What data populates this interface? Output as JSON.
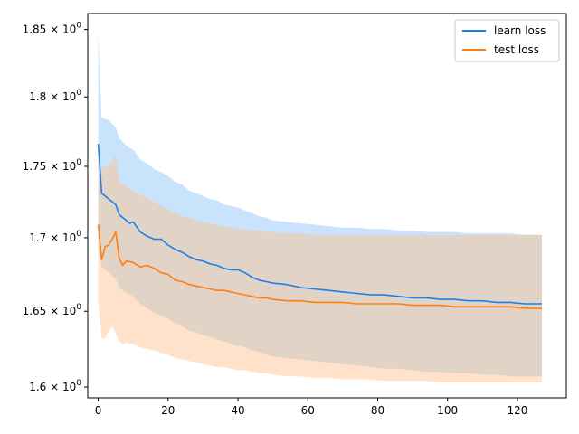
{
  "chart_data": {
    "type": "line",
    "title": "",
    "xlabel": "",
    "ylabel": "",
    "xlim": [
      -3,
      134
    ],
    "ylim": [
      1.593,
      1.862
    ],
    "yscale": "log",
    "grid": false,
    "legend_position": "top-right",
    "x_ticks": [
      {
        "value": 0,
        "label": "0"
      },
      {
        "value": 20,
        "label": "20"
      },
      {
        "value": 40,
        "label": "40"
      },
      {
        "value": 60,
        "label": "60"
      },
      {
        "value": 80,
        "label": "80"
      },
      {
        "value": 100,
        "label": "100"
      },
      {
        "value": 120,
        "label": "120"
      }
    ],
    "y_ticks": [
      {
        "value": 1.6,
        "base": "1.6",
        "exp": "0"
      },
      {
        "value": 1.65,
        "base": "1.65",
        "exp": "0"
      },
      {
        "value": 1.7,
        "base": "1.7",
        "exp": "0"
      },
      {
        "value": 1.75,
        "base": "1.75",
        "exp": "0"
      },
      {
        "value": 1.8,
        "base": "1.8",
        "exp": "0"
      },
      {
        "value": 1.85,
        "base": "1.85",
        "exp": "0"
      }
    ],
    "tick_times_symbol": "×",
    "tick_base_number": "10",
    "series": [
      {
        "name": "learn loss",
        "color": "#1a80e5",
        "band_color": "#9fccfa",
        "band_opacity": 0.55,
        "x": [
          0,
          1,
          3,
          5,
          6,
          8,
          9,
          10,
          12,
          14,
          16,
          18,
          20,
          22,
          24,
          26,
          28,
          30,
          32,
          34,
          36,
          38,
          40,
          42,
          44,
          46,
          48,
          50,
          54,
          58,
          62,
          66,
          70,
          74,
          78,
          82,
          86,
          90,
          94,
          98,
          102,
          106,
          110,
          114,
          118,
          122,
          125,
          127
        ],
        "mean": [
          1.766,
          1.731,
          1.727,
          1.723,
          1.716,
          1.712,
          1.71,
          1.711,
          1.704,
          1.701,
          1.699,
          1.699,
          1.695,
          1.692,
          1.69,
          1.687,
          1.685,
          1.684,
          1.682,
          1.681,
          1.679,
          1.678,
          1.678,
          1.676,
          1.673,
          1.671,
          1.67,
          1.669,
          1.668,
          1.666,
          1.665,
          1.664,
          1.663,
          1.662,
          1.661,
          1.661,
          1.66,
          1.659,
          1.659,
          1.658,
          1.658,
          1.657,
          1.657,
          1.656,
          1.656,
          1.655,
          1.655,
          1.655
        ],
        "upper": [
          1.847,
          1.785,
          1.783,
          1.778,
          1.77,
          1.765,
          1.763,
          1.762,
          1.755,
          1.752,
          1.748,
          1.746,
          1.743,
          1.739,
          1.737,
          1.733,
          1.731,
          1.729,
          1.727,
          1.726,
          1.723,
          1.722,
          1.721,
          1.719,
          1.717,
          1.715,
          1.714,
          1.712,
          1.711,
          1.71,
          1.709,
          1.708,
          1.707,
          1.707,
          1.706,
          1.706,
          1.705,
          1.705,
          1.704,
          1.704,
          1.704,
          1.703,
          1.703,
          1.703,
          1.703,
          1.702,
          1.702,
          1.702
        ],
        "lower": [
          1.691,
          1.68,
          1.676,
          1.672,
          1.666,
          1.662,
          1.661,
          1.66,
          1.655,
          1.652,
          1.649,
          1.647,
          1.645,
          1.642,
          1.64,
          1.637,
          1.636,
          1.634,
          1.633,
          1.631,
          1.63,
          1.628,
          1.627,
          1.626,
          1.624,
          1.623,
          1.621,
          1.62,
          1.619,
          1.618,
          1.617,
          1.616,
          1.615,
          1.614,
          1.613,
          1.612,
          1.612,
          1.611,
          1.61,
          1.61,
          1.609,
          1.609,
          1.608,
          1.608,
          1.607,
          1.607,
          1.607,
          1.607
        ]
      },
      {
        "name": "test loss",
        "color": "#ff7f0e",
        "band_color": "#ffbf88",
        "band_opacity": 0.45,
        "x": [
          0,
          1,
          2,
          3,
          4,
          5,
          6,
          7,
          8,
          10,
          12,
          14,
          16,
          18,
          20,
          22,
          24,
          26,
          28,
          30,
          32,
          34,
          36,
          38,
          40,
          42,
          44,
          46,
          48,
          50,
          54,
          58,
          62,
          66,
          70,
          74,
          78,
          82,
          86,
          90,
          94,
          98,
          102,
          106,
          110,
          114,
          118,
          122,
          125,
          127
        ],
        "mean": [
          1.709,
          1.685,
          1.694,
          1.695,
          1.699,
          1.704,
          1.686,
          1.681,
          1.684,
          1.683,
          1.68,
          1.681,
          1.679,
          1.676,
          1.675,
          1.671,
          1.67,
          1.668,
          1.667,
          1.666,
          1.665,
          1.664,
          1.664,
          1.663,
          1.662,
          1.661,
          1.66,
          1.659,
          1.659,
          1.658,
          1.657,
          1.657,
          1.656,
          1.656,
          1.656,
          1.655,
          1.655,
          1.655,
          1.655,
          1.654,
          1.654,
          1.654,
          1.653,
          1.653,
          1.653,
          1.653,
          1.653,
          1.652,
          1.652,
          1.652
        ],
        "upper": [
          1.762,
          1.75,
          1.749,
          1.751,
          1.753,
          1.758,
          1.74,
          1.737,
          1.736,
          1.733,
          1.73,
          1.728,
          1.725,
          1.722,
          1.72,
          1.717,
          1.715,
          1.714,
          1.712,
          1.711,
          1.71,
          1.709,
          1.708,
          1.707,
          1.706,
          1.706,
          1.705,
          1.705,
          1.704,
          1.704,
          1.703,
          1.703,
          1.702,
          1.702,
          1.702,
          1.702,
          1.702,
          1.702,
          1.702,
          1.702,
          1.702,
          1.702,
          1.702,
          1.702,
          1.702,
          1.702,
          1.702,
          1.702,
          1.702,
          1.702
        ],
        "lower": [
          1.656,
          1.632,
          1.632,
          1.637,
          1.64,
          1.635,
          1.63,
          1.628,
          1.629,
          1.628,
          1.626,
          1.625,
          1.624,
          1.622,
          1.621,
          1.619,
          1.618,
          1.617,
          1.616,
          1.615,
          1.614,
          1.613,
          1.613,
          1.612,
          1.611,
          1.611,
          1.61,
          1.609,
          1.609,
          1.608,
          1.607,
          1.607,
          1.606,
          1.606,
          1.605,
          1.605,
          1.605,
          1.604,
          1.604,
          1.604,
          1.604,
          1.603,
          1.603,
          1.603,
          1.603,
          1.603,
          1.603,
          1.603,
          1.603,
          1.603
        ]
      }
    ]
  }
}
